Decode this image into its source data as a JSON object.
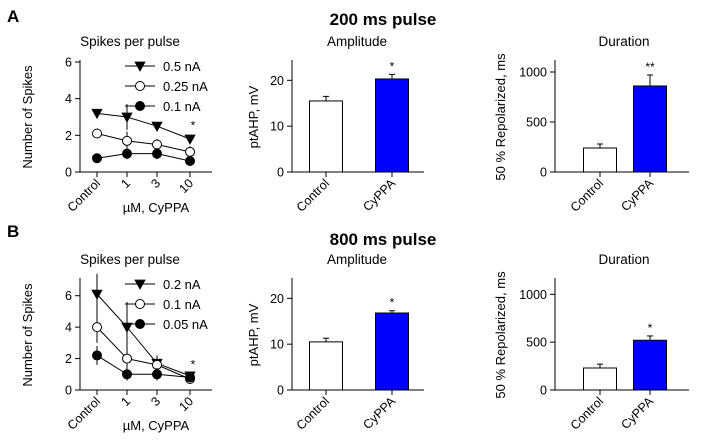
{
  "sections": [
    {
      "letter": "A",
      "title": "200 ms pulse",
      "charts": [
        {
          "type": "line",
          "title": "Spikes per pulse",
          "ylabel": "Number of Spikes",
          "xlabel": "µM, CyPPA",
          "categories": [
            "Control",
            "1",
            "3",
            "10"
          ],
          "ylim": [
            0,
            6
          ],
          "yticks": [
            "0",
            "2",
            "4",
            "6"
          ],
          "series": [
            {
              "name": "0.5 nA",
              "marker": "triangle",
              "values": [
                3.2,
                3.0,
                2.5,
                1.8
              ],
              "errors": [
                0.2,
                0.7,
                0.2,
                0.2
              ]
            },
            {
              "name": "0.25 nA",
              "marker": "open-circle",
              "values": [
                2.1,
                1.7,
                1.5,
                1.1
              ],
              "errors": [
                0.2,
                0.5,
                0.3,
                0.3
              ]
            },
            {
              "name": "0.1 nA",
              "marker": "filled-circle",
              "values": [
                0.75,
                1.0,
                1.0,
                0.6
              ],
              "errors": [
                0.1,
                0.3,
                0.3,
                0.2
              ]
            }
          ],
          "annotations": [
            {
              "category": "10",
              "text": "*"
            }
          ]
        },
        {
          "type": "bar",
          "title": "Amplitude",
          "ylabel": "ptAHP, mV",
          "categories": [
            "Control",
            "CyPPA"
          ],
          "values": [
            15.5,
            20.3
          ],
          "errors": [
            1.0,
            1.0
          ],
          "colors": [
            "#ffffff",
            "#0000ff"
          ],
          "ylim": [
            0,
            24
          ],
          "yticks": [
            "0",
            "10",
            "20"
          ],
          "annotations": [
            {
              "category": "CyPPA",
              "text": "*"
            }
          ]
        },
        {
          "type": "bar",
          "title": "Duration",
          "ylabel": "50 % Repolarized, ms",
          "categories": [
            "Control",
            "CyPPA"
          ],
          "values": [
            240,
            860
          ],
          "errors": [
            40,
            110
          ],
          "colors": [
            "#ffffff",
            "#0000ff"
          ],
          "ylim": [
            0,
            1100
          ],
          "yticks": [
            "0",
            "500",
            "1000"
          ],
          "annotations": [
            {
              "category": "CyPPA",
              "text": "**"
            }
          ]
        }
      ]
    },
    {
      "letter": "B",
      "title": "800 ms pulse",
      "charts": [
        {
          "type": "line",
          "title": "Spikes per pulse",
          "ylabel": "Number of Spikes",
          "xlabel": "µM, CyPPA",
          "categories": [
            "Control",
            "1",
            "3",
            "10"
          ],
          "ylim": [
            0,
            7
          ],
          "yticks": [
            "0",
            "2",
            "4",
            "6"
          ],
          "series": [
            {
              "name": "0.2 nA",
              "marker": "triangle",
              "values": [
                6.1,
                4.0,
                1.7,
                0.9
              ],
              "errors": [
                1.3,
                1.6,
                0.5,
                0.1
              ]
            },
            {
              "name": "0.1 nA",
              "marker": "open-circle",
              "values": [
                4.0,
                2.0,
                1.6,
                0.7
              ],
              "errors": [
                1.0,
                0.8,
                0.4,
                0.1
              ]
            },
            {
              "name": "0.05 nA",
              "marker": "filled-circle",
              "values": [
                2.2,
                1.0,
                1.0,
                0.8
              ],
              "errors": [
                0.6,
                0.4,
                0.4,
                0.1
              ]
            }
          ],
          "annotations": [
            {
              "category": "10",
              "text": "*"
            }
          ]
        },
        {
          "type": "bar",
          "title": "Amplitude",
          "ylabel": "ptAHP, mV",
          "categories": [
            "Control",
            "CyPPA"
          ],
          "values": [
            10.5,
            16.8
          ],
          "errors": [
            0.8,
            0.5
          ],
          "colors": [
            "#ffffff",
            "#0000ff"
          ],
          "ylim": [
            0,
            24
          ],
          "yticks": [
            "0",
            "10",
            "20"
          ],
          "annotations": [
            {
              "category": "CyPPA",
              "text": "*"
            }
          ]
        },
        {
          "type": "bar",
          "title": "Duration",
          "ylabel": "50 % Repolarized, ms",
          "categories": [
            "Control",
            "CyPPA"
          ],
          "values": [
            230,
            520
          ],
          "errors": [
            40,
            45
          ],
          "colors": [
            "#ffffff",
            "#0000ff"
          ],
          "ylim": [
            0,
            1150
          ],
          "yticks": [
            "0",
            "500",
            "1000"
          ],
          "annotations": [
            {
              "category": "CyPPA",
              "text": "*"
            }
          ]
        }
      ]
    }
  ]
}
